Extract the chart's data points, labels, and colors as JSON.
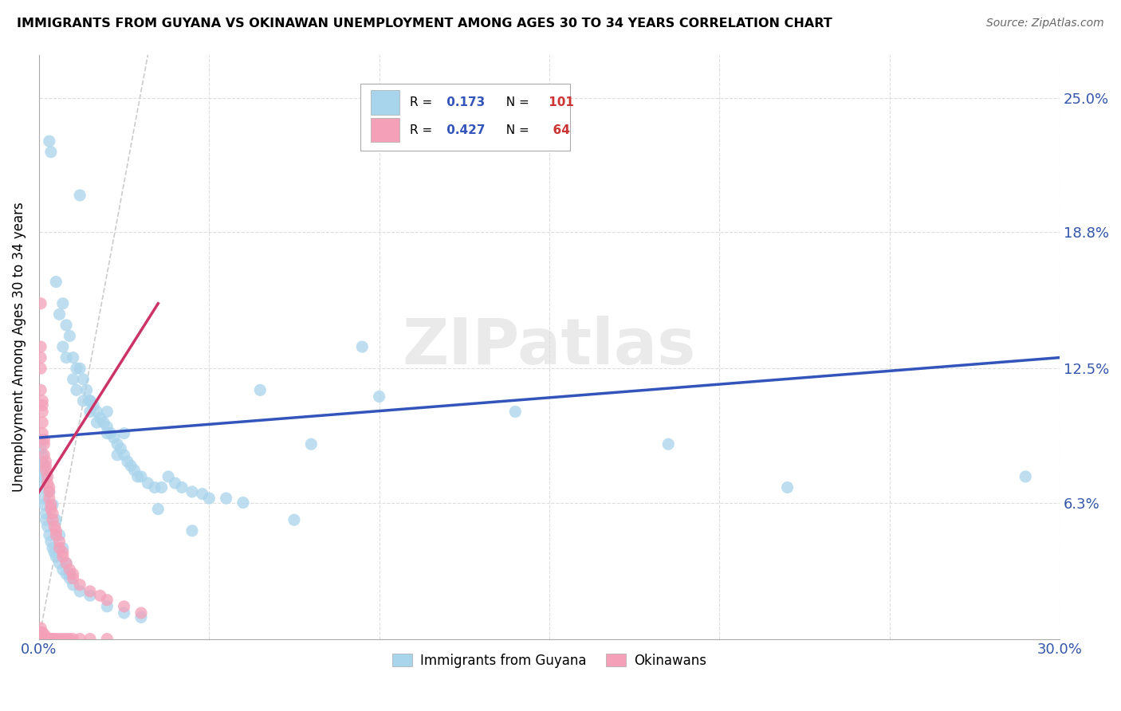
{
  "title": "IMMIGRANTS FROM GUYANA VS OKINAWAN UNEMPLOYMENT AMONG AGES 30 TO 34 YEARS CORRELATION CHART",
  "source": "Source: ZipAtlas.com",
  "ylabel": "Unemployment Among Ages 30 to 34 years",
  "ytick_values": [
    6.3,
    12.5,
    18.8,
    25.0
  ],
  "xmin": 0.0,
  "xmax": 30.0,
  "ymin": 0.0,
  "ymax": 27.0,
  "blue_color": "#A8D4EC",
  "pink_color": "#F4A0B8",
  "blue_line_color": "#3355BB",
  "pink_line_color": "#CC3366",
  "diagonal_color": "#CCCCCC",
  "legend_blue_label": "Immigrants from Guyana",
  "legend_pink_label": "Okinawans",
  "R_blue": 0.173,
  "N_blue": 101,
  "R_pink": 0.427,
  "N_pink": 64,
  "watermark_zip": "ZIP",
  "watermark_atlas": "atlas",
  "blue_R_color": "#3355BB",
  "blue_N_color": "#CC3333",
  "pink_R_color": "#3355BB",
  "pink_N_color": "#CC3333",
  "blue_scatter_x": [
    0.3,
    0.35,
    1.2,
    0.5,
    0.7,
    0.6,
    0.8,
    0.9,
    0.7,
    0.8,
    1.0,
    1.1,
    1.2,
    1.0,
    1.3,
    1.1,
    1.4,
    1.5,
    1.3,
    1.6,
    1.7,
    1.5,
    1.8,
    1.9,
    1.7,
    2.0,
    2.1,
    2.0,
    2.2,
    2.3,
    2.4,
    2.5,
    2.3,
    2.6,
    2.7,
    2.8,
    2.9,
    3.0,
    3.2,
    3.4,
    3.6,
    3.8,
    4.0,
    4.2,
    4.5,
    4.8,
    5.0,
    5.5,
    6.0,
    7.5,
    8.0,
    9.5,
    14.0,
    18.5,
    22.0,
    29.0,
    0.05,
    0.05,
    0.05,
    0.1,
    0.1,
    0.15,
    0.15,
    0.2,
    0.2,
    0.25,
    0.3,
    0.35,
    0.4,
    0.45,
    0.5,
    0.6,
    0.7,
    0.8,
    0.9,
    1.0,
    1.2,
    1.5,
    2.0,
    2.5,
    3.0,
    0.05,
    0.1,
    0.15,
    0.2,
    0.3,
    0.4,
    0.5,
    0.6,
    0.7,
    0.8,
    0.9,
    1.5,
    2.0,
    2.5,
    3.5,
    4.5,
    6.5,
    10.0
  ],
  "blue_scatter_y": [
    23.0,
    22.5,
    20.5,
    16.5,
    15.5,
    15.0,
    14.5,
    14.0,
    13.5,
    13.0,
    13.0,
    12.5,
    12.5,
    12.0,
    12.0,
    11.5,
    11.5,
    11.0,
    11.0,
    10.8,
    10.5,
    10.5,
    10.2,
    10.0,
    10.0,
    9.8,
    9.5,
    9.5,
    9.3,
    9.0,
    8.8,
    8.5,
    8.5,
    8.2,
    8.0,
    7.8,
    7.5,
    7.5,
    7.2,
    7.0,
    7.0,
    7.5,
    7.2,
    7.0,
    6.8,
    6.7,
    6.5,
    6.5,
    6.3,
    5.5,
    9.0,
    13.5,
    10.5,
    9.0,
    7.0,
    7.5,
    8.8,
    8.2,
    7.8,
    7.5,
    7.0,
    6.5,
    6.2,
    5.8,
    5.5,
    5.2,
    4.8,
    4.5,
    4.2,
    4.0,
    3.8,
    3.5,
    3.2,
    3.0,
    2.8,
    2.5,
    2.2,
    2.0,
    1.5,
    1.2,
    1.0,
    9.2,
    8.5,
    8.0,
    7.5,
    6.8,
    6.2,
    5.5,
    4.8,
    4.2,
    3.5,
    3.0,
    11.0,
    10.5,
    9.5,
    6.0,
    5.0,
    11.5,
    11.2
  ],
  "pink_scatter_x": [
    0.05,
    0.05,
    0.05,
    0.05,
    0.05,
    0.1,
    0.1,
    0.1,
    0.1,
    0.1,
    0.15,
    0.15,
    0.15,
    0.2,
    0.2,
    0.2,
    0.25,
    0.25,
    0.3,
    0.3,
    0.3,
    0.35,
    0.35,
    0.4,
    0.4,
    0.45,
    0.5,
    0.5,
    0.6,
    0.6,
    0.7,
    0.7,
    0.8,
    0.9,
    1.0,
    1.0,
    1.2,
    1.5,
    1.8,
    2.0,
    2.5,
    3.0,
    0.05,
    0.05,
    0.05,
    0.1,
    0.1,
    0.15,
    0.15,
    0.2,
    0.2,
    0.25,
    0.3,
    0.3,
    0.35,
    0.4,
    0.45,
    0.5,
    0.6,
    0.7,
    0.8,
    0.9,
    1.0,
    1.2,
    1.5,
    2.0
  ],
  "pink_scatter_y": [
    15.5,
    13.5,
    13.0,
    12.5,
    11.5,
    11.0,
    10.8,
    10.5,
    10.0,
    9.5,
    9.2,
    9.0,
    8.5,
    8.2,
    8.0,
    7.8,
    7.5,
    7.2,
    7.0,
    6.8,
    6.5,
    6.2,
    6.0,
    5.8,
    5.5,
    5.2,
    5.0,
    4.8,
    4.5,
    4.2,
    4.0,
    3.8,
    3.5,
    3.2,
    3.0,
    2.8,
    2.5,
    2.2,
    2.0,
    1.8,
    1.5,
    1.2,
    0.5,
    0.3,
    0.1,
    0.3,
    0.1,
    0.2,
    0.1,
    0.1,
    0.0,
    0.0,
    0.0,
    0.0,
    0.0,
    0.0,
    0.0,
    0.0,
    0.0,
    0.0,
    0.0,
    0.0,
    0.0,
    0.0,
    0.0,
    0.0
  ],
  "blue_line_x0": 0.0,
  "blue_line_y0": 9.3,
  "blue_line_x1": 30.0,
  "blue_line_y1": 13.0,
  "pink_line_x0": 0.0,
  "pink_line_y0": 6.8,
  "pink_line_x1": 3.5,
  "pink_line_y1": 15.5,
  "diag_x0": 0.0,
  "diag_y0": 0.0,
  "diag_x1": 3.2,
  "diag_y1": 27.0
}
